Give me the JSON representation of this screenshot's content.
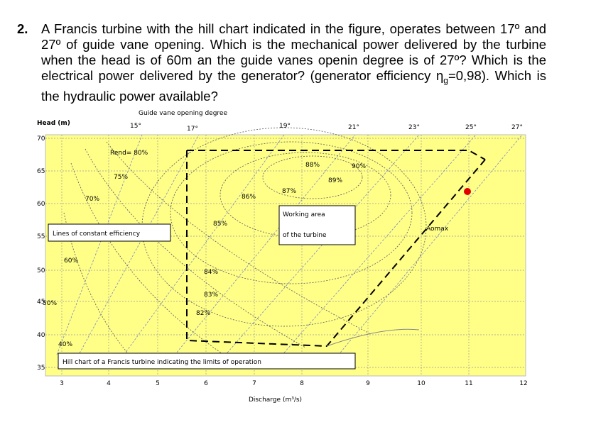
{
  "question": {
    "number": "2.",
    "text_1": "A Francis turbine with the hill chart indicated in the figure, operates between 17º and 27º of guide vane opening. Which is the mechanical power delivered by the turbine when the head is of 60m an the guide vanes openin degree is of 27º? Which is the electrical power delivered by the generator? (generator efficiency ",
    "eta": "η",
    "eta_sub": "g",
    "text_2": "=0,98). Which is the hydraulic power available?"
  },
  "figure": {
    "y_axis_label": "Head (m)",
    "x_axis_label": "Discharge (m³/s)",
    "vane_label": "Guide vane opening degree",
    "vane_angles": [
      "15°",
      "17°",
      "19°",
      "21°",
      "23°",
      "25°",
      "27°"
    ],
    "y_ticks": [
      "70",
      "65",
      "60",
      "55",
      "50",
      "45",
      "40",
      "35"
    ],
    "x_ticks": [
      "3",
      "4",
      "5",
      "6",
      "7",
      "8",
      "9",
      "10",
      "11",
      "12"
    ],
    "efficiency_labels": [
      "Rend= 80%",
      "75%",
      "70%",
      "60%",
      "50%",
      "40%",
      "88%",
      "90%",
      "89%",
      "87%",
      "86%",
      "85%",
      "84%",
      "83%",
      "82%"
    ],
    "working_area": [
      "Working area",
      "of the turbine"
    ],
    "constant_efficiency": "Lines of constant efficiency",
    "max_label": "Aomax",
    "caption": "Hill chart of a Francis turbine indicating the limits of operation"
  }
}
